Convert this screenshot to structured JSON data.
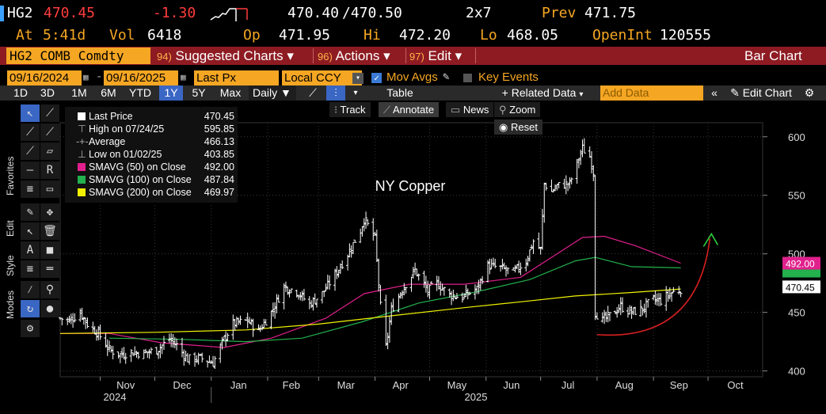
{
  "header": {
    "ticker": "HG2",
    "last": "470.45",
    "change": "-1.30",
    "bid_ask": "470.40",
    "ask": "/470.50",
    "size": "2x7",
    "prev_label": "Prev",
    "prev": "471.75",
    "at_label": "At",
    "time": "5:41d",
    "vol_label": "Vol",
    "vol": "6418",
    "op_label": "Op",
    "op": "471.95",
    "hi_label": "Hi",
    "hi": "472.20",
    "lo_label": "Lo",
    "lo": "468.05",
    "oi_label": "OpenInt",
    "oi": "120555"
  },
  "toolbar": {
    "security": "HG2 COMB Comdty",
    "suggested_num": "94)",
    "suggested": "Suggested Charts",
    "actions_num": "96)",
    "actions": "Actions",
    "edit_num": "97)",
    "edit": "Edit",
    "title": "Bar Chart"
  },
  "controls": {
    "start_date": "09/16/2024",
    "end_date": "09/16/2025",
    "field": "Last Px",
    "currency": "Local CCY",
    "mov_avgs": "Mov Avgs",
    "key_events": "Key Events",
    "periods": [
      "1D",
      "3D",
      "1M",
      "6M",
      "YTD",
      "1Y",
      "5Y",
      "Max"
    ],
    "selected_period": "1Y",
    "frequency": "Daily",
    "table": "Table",
    "related": "+ Related Data",
    "add_data": "Add Data",
    "edit_chart": "Edit Chart",
    "track": "Track",
    "annotate": "Annotate",
    "news": "News",
    "zoom": "Zoom",
    "reset": "Reset"
  },
  "sidebar": {
    "tabs": [
      "Favorites",
      "Edit",
      "Style",
      "Modes"
    ]
  },
  "legend": [
    {
      "label": "Last Price",
      "value": "470.45",
      "color": "#ffffff"
    },
    {
      "label": "High on 07/24/25",
      "value": "595.85",
      "color": ""
    },
    {
      "label": "Average",
      "value": "466.13",
      "color": ""
    },
    {
      "label": "Low on 01/02/25",
      "value": "403.85",
      "color": ""
    },
    {
      "label": "SMAVG (50)  on Close",
      "value": "492.00",
      "color": "#e0208c"
    },
    {
      "label": "SMAVG (100)  on Close",
      "value": "487.84",
      "color": "#22b14c"
    },
    {
      "label": "SMAVG (200)  on Close",
      "value": "469.97",
      "color": "#f2f200"
    }
  ],
  "colors": {
    "amber": "#f5a623",
    "red_bar": "#8e1b22",
    "sma50": "#e0208c",
    "sma100": "#22b14c",
    "sma200": "#f2f200",
    "annotation": "#d61f1f"
  },
  "chart_data": {
    "type": "bar",
    "annotation_text": "NY Copper",
    "ylim": [
      395,
      612
    ],
    "yticks": [
      400,
      450,
      500,
      550,
      600
    ],
    "xticks": [
      "Nov",
      "Dec",
      "Jan",
      "Feb",
      "Mar",
      "Apr",
      "May",
      "Jun",
      "Jul",
      "Aug",
      "Sep",
      "Oct"
    ],
    "years": [
      "2024",
      "2025"
    ],
    "price_labels": {
      "sma50": "492.00",
      "last": "470.45"
    },
    "price_path": [
      [
        "2024-10-10",
        445
      ],
      [
        "2024-10-15",
        443
      ],
      [
        "2024-10-21",
        450
      ],
      [
        "2024-10-25",
        440
      ],
      [
        "2024-10-31",
        432
      ],
      [
        "2024-11-06",
        418
      ],
      [
        "2024-11-12",
        414
      ],
      [
        "2024-11-18",
        416
      ],
      [
        "2024-11-25",
        415
      ],
      [
        "2024-12-02",
        418
      ],
      [
        "2024-12-09",
        427
      ],
      [
        "2024-12-13",
        422
      ],
      [
        "2024-12-19",
        410
      ],
      [
        "2024-12-26",
        411
      ],
      [
        "2025-01-02",
        407
      ],
      [
        "2025-01-08",
        427
      ],
      [
        "2025-01-13",
        440
      ],
      [
        "2025-01-21",
        443
      ],
      [
        "2025-01-27",
        434
      ],
      [
        "2025-02-03",
        450
      ],
      [
        "2025-02-10",
        472
      ],
      [
        "2025-02-17",
        468
      ],
      [
        "2025-02-24",
        457
      ],
      [
        "2025-03-03",
        466
      ],
      [
        "2025-03-10",
        482
      ],
      [
        "2025-03-17",
        500
      ],
      [
        "2025-03-24",
        520
      ],
      [
        "2025-03-26",
        530
      ],
      [
        "2025-04-01",
        513
      ],
      [
        "2025-04-04",
        455
      ],
      [
        "2025-04-07",
        420
      ],
      [
        "2025-04-10",
        452
      ],
      [
        "2025-04-16",
        470
      ],
      [
        "2025-04-23",
        486
      ],
      [
        "2025-04-30",
        468
      ],
      [
        "2025-05-05",
        475
      ],
      [
        "2025-05-12",
        465
      ],
      [
        "2025-05-19",
        463
      ],
      [
        "2025-05-27",
        470
      ],
      [
        "2025-06-02",
        490
      ],
      [
        "2025-06-09",
        488
      ],
      [
        "2025-06-16",
        484
      ],
      [
        "2025-06-23",
        494
      ],
      [
        "2025-06-27",
        511
      ],
      [
        "2025-07-01",
        503
      ],
      [
        "2025-07-03",
        560
      ],
      [
        "2025-07-07",
        553
      ],
      [
        "2025-07-10",
        558
      ],
      [
        "2025-07-17",
        560
      ],
      [
        "2025-07-24",
        590
      ],
      [
        "2025-07-28",
        583
      ],
      [
        "2025-07-30",
        570
      ],
      [
        "2025-07-31",
        450
      ],
      [
        "2025-08-04",
        443
      ],
      [
        "2025-08-08",
        447
      ],
      [
        "2025-08-14",
        455
      ],
      [
        "2025-08-20",
        450
      ],
      [
        "2025-08-26",
        453
      ],
      [
        "2025-09-01",
        461
      ],
      [
        "2025-09-05",
        460
      ],
      [
        "2025-09-10",
        466
      ],
      [
        "2025-09-16",
        470
      ]
    ],
    "series": [
      {
        "name": "SMAVG (50)",
        "points": [
          [
            "2024-10-10",
            432
          ],
          [
            "2024-11-06",
            432
          ],
          [
            "2024-12-05",
            424
          ],
          [
            "2025-01-08",
            420
          ],
          [
            "2025-02-03",
            428
          ],
          [
            "2025-03-05",
            445
          ],
          [
            "2025-03-26",
            466
          ],
          [
            "2025-04-20",
            474
          ],
          [
            "2025-05-20",
            474
          ],
          [
            "2025-06-20",
            480
          ],
          [
            "2025-07-10",
            500
          ],
          [
            "2025-07-24",
            514
          ],
          [
            "2025-08-05",
            515
          ],
          [
            "2025-08-22",
            507
          ],
          [
            "2025-09-16",
            492
          ]
        ]
      },
      {
        "name": "SMAVG (100)",
        "points": [
          [
            "2024-11-06",
            428
          ],
          [
            "2024-12-15",
            427
          ],
          [
            "2025-01-20",
            425
          ],
          [
            "2025-02-20",
            428
          ],
          [
            "2025-03-25",
            442
          ],
          [
            "2025-04-25",
            458
          ],
          [
            "2025-05-25",
            467
          ],
          [
            "2025-06-25",
            478
          ],
          [
            "2025-07-20",
            494
          ],
          [
            "2025-07-31",
            497
          ],
          [
            "2025-08-20",
            489
          ],
          [
            "2025-09-16",
            488
          ]
        ]
      },
      {
        "name": "SMAVG (200)",
        "points": [
          [
            "2024-10-10",
            432
          ],
          [
            "2024-12-01",
            433
          ],
          [
            "2025-01-20",
            435
          ],
          [
            "2025-03-01",
            440
          ],
          [
            "2025-04-15",
            448
          ],
          [
            "2025-05-20",
            454
          ],
          [
            "2025-06-20",
            459
          ],
          [
            "2025-07-20",
            464
          ],
          [
            "2025-08-20",
            467
          ],
          [
            "2025-09-16",
            470
          ]
        ]
      }
    ],
    "high": {
      "date": "2025-07-24",
      "value": 595.85
    },
    "low": {
      "date": "2025-01-02",
      "value": 403.85
    }
  }
}
